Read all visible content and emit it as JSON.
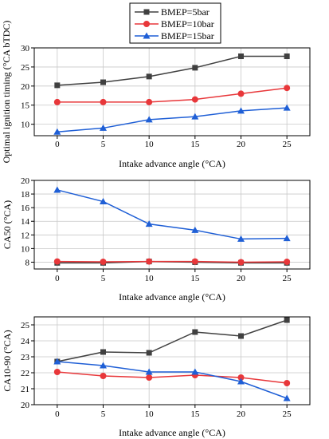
{
  "legend": {
    "entries": [
      {
        "label": "BMEP=5bar",
        "color": "#404040",
        "marker": "square"
      },
      {
        "label": "BMEP=10bar",
        "color": "#e8373a",
        "marker": "circle"
      },
      {
        "label": "BMEP=15bar",
        "color": "#1f5fd6",
        "marker": "triangle"
      }
    ],
    "placement": "top-center"
  },
  "chart_data": [
    {
      "type": "line",
      "xlabel": "Intake advance angle (°CA)",
      "ylabel": "Optimal ignition timing (°CA bTDC)",
      "x": [
        0,
        5,
        10,
        15,
        20,
        25
      ],
      "xlim": [
        -2.5,
        27.5
      ],
      "ylim": [
        7,
        30
      ],
      "yticks": [
        10,
        15,
        20,
        25,
        30
      ],
      "grid": true,
      "series": [
        {
          "name": "BMEP=5bar",
          "values": [
            20.2,
            21.0,
            22.5,
            24.8,
            27.8,
            27.8
          ]
        },
        {
          "name": "BMEP=10bar",
          "values": [
            15.8,
            15.8,
            15.8,
            16.5,
            18.0,
            19.5
          ]
        },
        {
          "name": "BMEP=15bar",
          "values": [
            8.0,
            9.0,
            11.2,
            12.0,
            13.5,
            14.3
          ]
        }
      ]
    },
    {
      "type": "line",
      "xlabel": "Intake advance angle (°CA)",
      "ylabel": "CA50 (°CA)",
      "x": [
        0,
        5,
        10,
        15,
        20,
        25
      ],
      "xlim": [
        -2.5,
        27.5
      ],
      "ylim": [
        7,
        20
      ],
      "yticks": [
        8,
        10,
        12,
        14,
        16,
        18,
        20
      ],
      "grid": true,
      "series": [
        {
          "name": "BMEP=5bar",
          "values": [
            7.9,
            7.9,
            8.1,
            8.0,
            7.9,
            7.9
          ]
        },
        {
          "name": "BMEP=10bar",
          "values": [
            8.1,
            8.05,
            8.1,
            8.1,
            8.0,
            8.05
          ]
        },
        {
          "name": "BMEP=15bar",
          "values": [
            18.6,
            16.9,
            13.6,
            12.7,
            11.4,
            11.5
          ]
        }
      ]
    },
    {
      "type": "line",
      "xlabel": "Intake advance angle (°CA)",
      "ylabel": "CA10-90 (°CA)",
      "x": [
        0,
        5,
        10,
        15,
        20,
        25
      ],
      "xlim": [
        -2.5,
        27.5
      ],
      "ylim": [
        20,
        25.5
      ],
      "yticks": [
        20,
        21,
        22,
        23,
        24,
        25
      ],
      "grid": true,
      "series": [
        {
          "name": "BMEP=5bar",
          "values": [
            22.7,
            23.3,
            23.25,
            24.55,
            24.3,
            25.3
          ]
        },
        {
          "name": "BMEP=10bar",
          "values": [
            22.05,
            21.8,
            21.7,
            21.85,
            21.7,
            21.35
          ]
        },
        {
          "name": "BMEP=15bar",
          "values": [
            22.7,
            22.45,
            22.05,
            22.05,
            21.45,
            20.4
          ]
        }
      ]
    }
  ]
}
